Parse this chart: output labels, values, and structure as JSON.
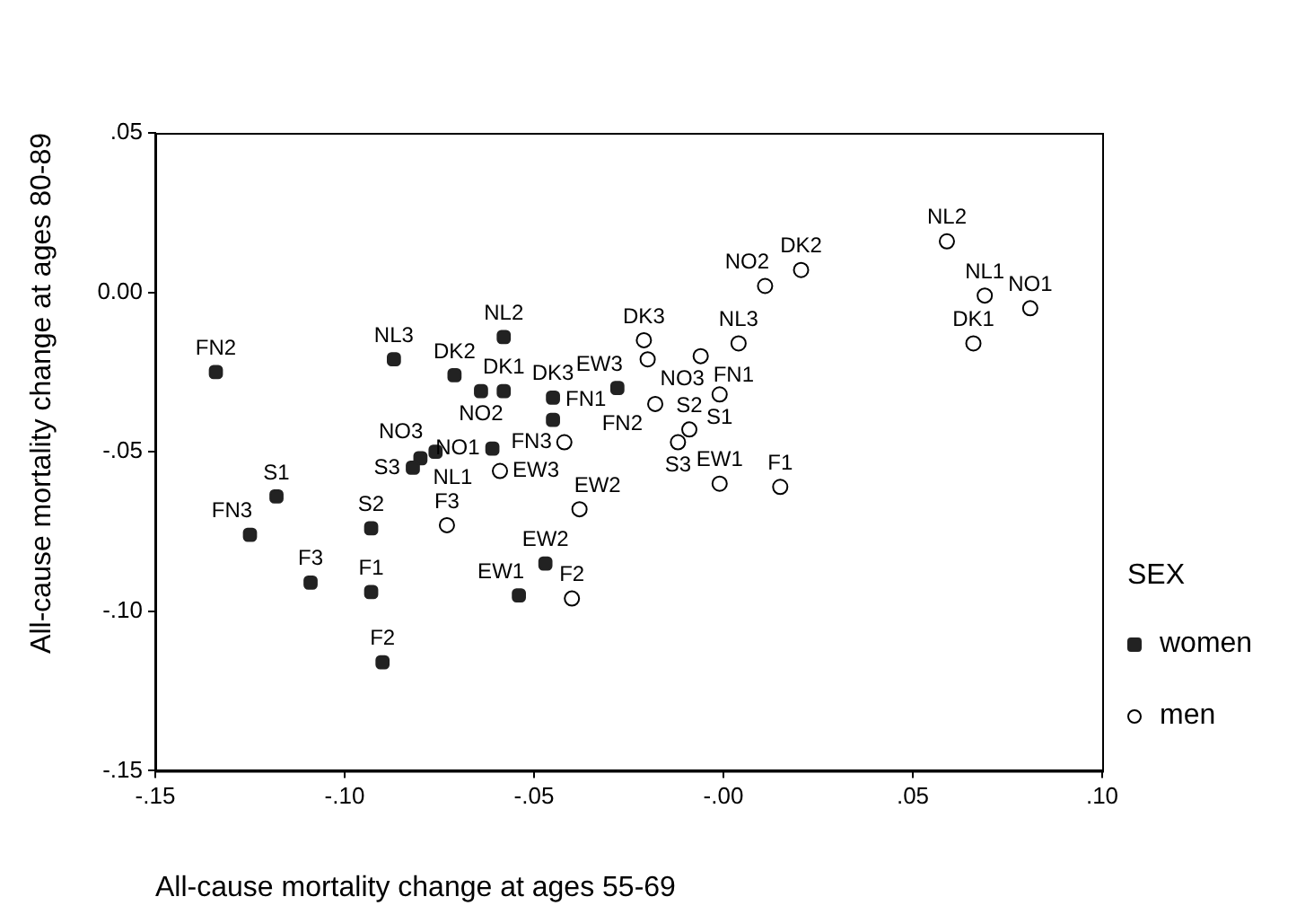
{
  "chart_data": {
    "type": "scatter",
    "xlabel": "All-cause mortality change at ages 55-69",
    "ylabel": "All-cause mortality change at ages 80-89",
    "legend_title": "SEX",
    "legend": "right",
    "grid": false,
    "xlim": [
      -0.15,
      0.1
    ],
    "ylim": [
      -0.15,
      0.05
    ],
    "xticks": [
      {
        "value": -0.15,
        "label": "-.15"
      },
      {
        "value": -0.1,
        "label": "-.10"
      },
      {
        "value": -0.05,
        "label": "-.05"
      },
      {
        "value": 0,
        "label": "-.00"
      },
      {
        "value": 0.05,
        "label": ".05"
      },
      {
        "value": 0.1,
        "label": ".10"
      }
    ],
    "yticks": [
      {
        "value": -0.15,
        "label": "-.15"
      },
      {
        "value": -0.1,
        "label": "-.10"
      },
      {
        "value": -0.05,
        "label": "-.05"
      },
      {
        "value": 0,
        "label": "0.00"
      },
      {
        "value": 0.05,
        "label": ".05"
      }
    ],
    "series": [
      {
        "name": "women",
        "color": "#222222",
        "marker": "square",
        "x": [
          -0.134,
          -0.125,
          -0.118,
          -0.093,
          -0.109,
          -0.093,
          -0.09,
          -0.087,
          -0.071,
          -0.064,
          -0.058,
          -0.058,
          -0.045,
          -0.045,
          -0.028,
          -0.061,
          -0.076,
          -0.08,
          -0.082,
          -0.054,
          -0.047
        ],
        "values": [
          -0.025,
          -0.076,
          -0.064,
          -0.074,
          -0.091,
          -0.094,
          -0.116,
          -0.021,
          -0.026,
          -0.031,
          -0.031,
          -0.014,
          -0.033,
          -0.04,
          -0.03,
          -0.049,
          -0.05,
          -0.052,
          -0.055,
          -0.095,
          -0.085
        ],
        "value_labels": [
          "FN2",
          "FN3",
          "S1",
          "S2",
          "F3",
          "F1",
          "F2",
          "NL3",
          "DK2",
          "NO2",
          "DK1",
          "NL2",
          "DK3",
          "FN1",
          "EW3",
          "NO1",
          "NO3",
          "NL1",
          "S3",
          "EW1",
          "EW2"
        ]
      },
      {
        "name": "men",
        "color": "#000000",
        "marker": "circle",
        "x": [
          0.059,
          0.0205,
          0.011,
          0.069,
          0.081,
          0.066,
          0.004,
          -0.021,
          -0.02,
          -0.006,
          -0.001,
          -0.018,
          -0.009,
          -0.012,
          -0.001,
          0.015,
          -0.042,
          -0.059,
          -0.073,
          -0.038,
          -0.04
        ],
        "values": [
          0.016,
          0.007,
          0.002,
          -0.001,
          -0.005,
          -0.016,
          -0.016,
          -0.015,
          -0.021,
          -0.02,
          -0.032,
          -0.035,
          -0.043,
          -0.047,
          -0.06,
          -0.061,
          -0.047,
          -0.056,
          -0.073,
          -0.068,
          -0.096
        ],
        "value_labels": [
          "NL2",
          "DK2",
          "NO2",
          "NL1",
          "NO1",
          "DK1",
          "NL3",
          "DK3",
          "NO3",
          "FN1",
          "S1",
          "FN2",
          "S2",
          "S3",
          "EW1",
          "F1",
          "FN3",
          "EW3",
          "F3",
          "EW2",
          "F2"
        ]
      }
    ]
  }
}
